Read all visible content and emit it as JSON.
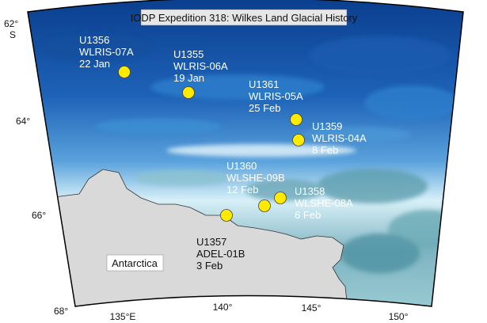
{
  "title": "IODP Expedition 318: Wilkes Land Glacial History",
  "land_label": "Antarctica",
  "colors": {
    "deep_ocean": "#0b3f8f",
    "shelf_ice": "#d8f0f8",
    "land": "#d9d9d9",
    "site_marker": "#ffea00"
  },
  "latitude_labels": [
    {
      "deg": "62°",
      "hemi": "S"
    },
    {
      "deg": "64°",
      "hemi": ""
    },
    {
      "deg": "66°",
      "hemi": ""
    },
    {
      "deg": "68°",
      "hemi": ""
    }
  ],
  "longitude_labels": [
    "135°E",
    "140°",
    "145°",
    "150°"
  ],
  "sites": [
    {
      "id": "U1356",
      "hole": "WLRIS-07A",
      "date": "22 Jan"
    },
    {
      "id": "U1355",
      "hole": "WLRIS-06A",
      "date": "19 Jan"
    },
    {
      "id": "U1361",
      "hole": "WLRIS-05A",
      "date": "25 Feb"
    },
    {
      "id": "U1359",
      "hole": "WLRIS-04A",
      "date": "8 Feb"
    },
    {
      "id": "U1360",
      "hole": "WLSHE-09B",
      "date": "12 Feb"
    },
    {
      "id": "U1358",
      "hole": "WLSHE-08A",
      "date": "6 Feb"
    },
    {
      "id": "U1357",
      "hole": "ADEL-01B",
      "date": "3 Feb"
    }
  ]
}
